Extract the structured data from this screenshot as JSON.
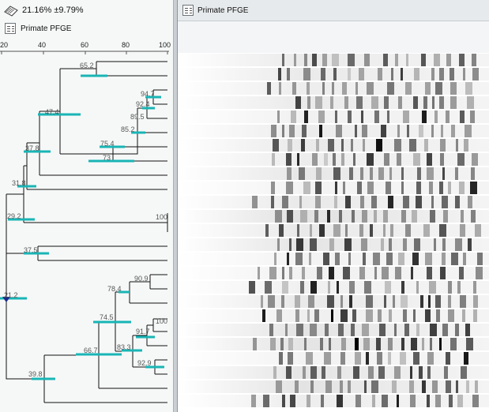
{
  "left_panel": {
    "cluster_value": "21.16% ±9.79%",
    "experiment_label": "Primate PFGE",
    "scale_ticks": [
      "20",
      "40",
      "60",
      "80",
      "100"
    ]
  },
  "right_panel": {
    "experiment_label": "Primate PFGE"
  },
  "dendrogram": {
    "node_labels": [
      "65.2",
      "94.7",
      "92.4",
      "89.5",
      "47.4",
      "85.2",
      "75.4",
      "73",
      "37.8",
      "31.8",
      "29.2",
      "100",
      "37.5",
      "21.2",
      "90.9",
      "78.4",
      "74.5",
      "100",
      "91.7",
      "83.3",
      "66.7",
      "92.9",
      "39.8"
    ]
  },
  "colors": {
    "error_bar": "#19b5b5",
    "root_marker": "#1a2a8a",
    "dendro_line": "#111111"
  }
}
